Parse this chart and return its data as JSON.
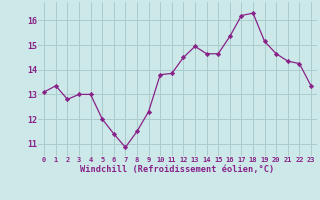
{
  "x": [
    0,
    1,
    2,
    3,
    4,
    5,
    6,
    7,
    8,
    9,
    10,
    11,
    12,
    13,
    14,
    15,
    16,
    17,
    18,
    19,
    20,
    21,
    22,
    23
  ],
  "y": [
    13.1,
    13.35,
    12.8,
    13.0,
    13.0,
    12.0,
    11.4,
    10.85,
    11.5,
    12.3,
    13.8,
    13.85,
    14.5,
    14.95,
    14.65,
    14.65,
    15.35,
    16.2,
    16.3,
    15.15,
    14.65,
    14.35,
    14.25,
    13.35
  ],
  "line_color": "#882288",
  "marker": "D",
  "marker_size": 2.2,
  "bg_color": "#cce8e8",
  "grid_color": "#aacccc",
  "xlabel": "Windchill (Refroidissement éolien,°C)",
  "xlabel_color": "#882288",
  "tick_color": "#882288",
  "ylim": [
    10.5,
    16.75
  ],
  "xlim": [
    -0.5,
    23.5
  ],
  "yticks": [
    11,
    12,
    13,
    14,
    15,
    16
  ],
  "xticks": [
    0,
    1,
    2,
    3,
    4,
    5,
    6,
    7,
    8,
    9,
    10,
    11,
    12,
    13,
    14,
    15,
    16,
    17,
    18,
    19,
    20,
    21,
    22,
    23
  ],
  "xtick_labels": [
    "0",
    "1",
    "2",
    "3",
    "4",
    "5",
    "6",
    "7",
    "8",
    "9",
    "10",
    "11",
    "12",
    "13",
    "14",
    "15",
    "16",
    "17",
    "18",
    "19",
    "20",
    "21",
    "22",
    "23"
  ]
}
